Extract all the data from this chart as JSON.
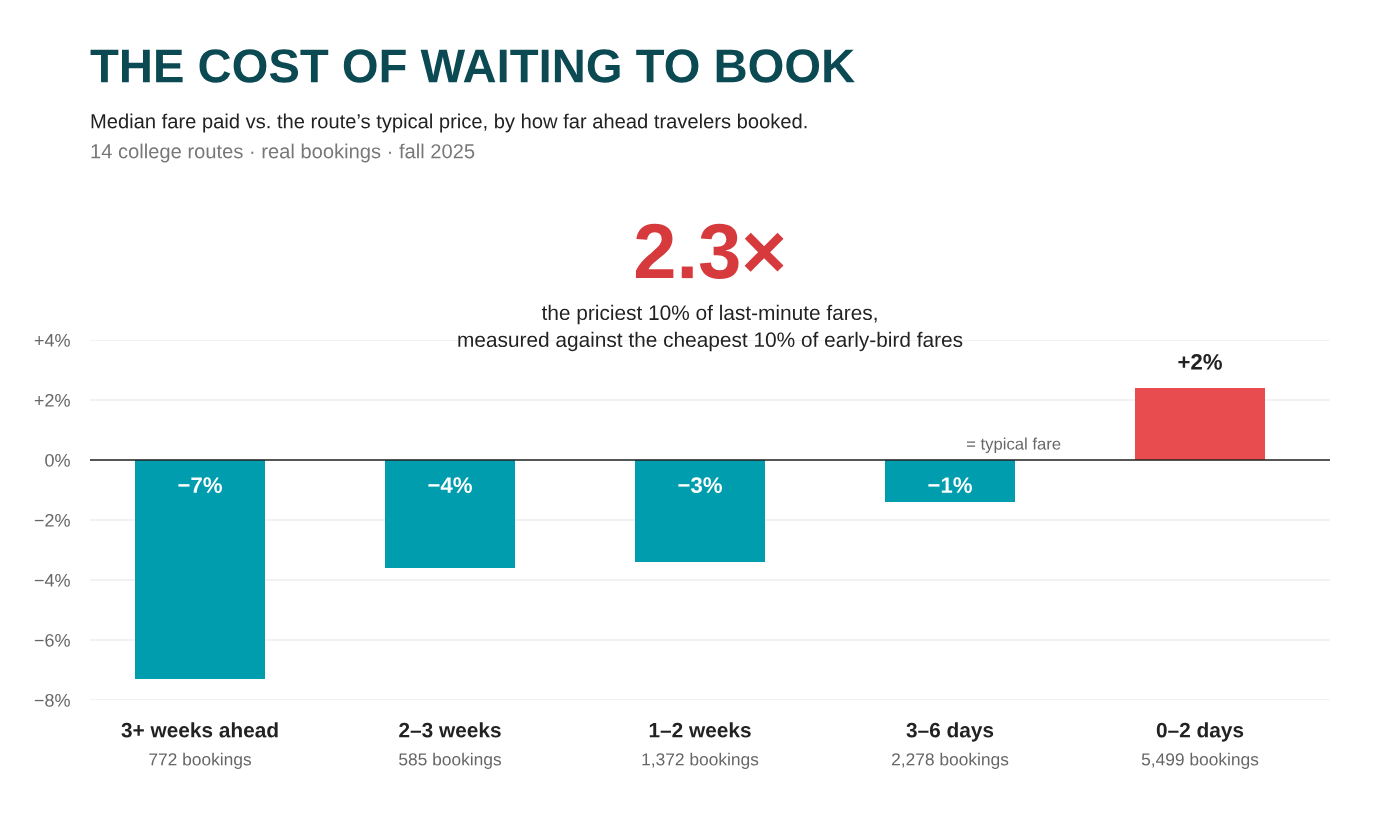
{
  "chart_data": {
    "type": "bar",
    "title": "THE COST OF WAITING TO BOOK",
    "subtitle": "Median fare paid vs. the route’s typical price, by how far ahead travelers booked.\n14 college routes · real bookings · fall 2025",
    "categories": [
      "3+ weeks ahead\n772 bookings",
      "2–3 weeks\n585 bookings",
      "1–2 weeks\n1,372 bookings",
      "3–6 days\n2,278 bookings",
      "0–2 days\n5,499 bookings"
    ],
    "values": [
      -7.3,
      -3.6,
      -3.4,
      -1.4,
      2.4
    ],
    "colors": [
      "#009dae",
      "#009dae",
      "#009dae",
      "#009dae",
      "#e84c4f"
    ],
    "value_labels": [
      "−7%",
      "−4%",
      "−3%",
      "−1%",
      "+2%"
    ],
    "ylim": [
      -8,
      4
    ],
    "yticks": [
      {
        "value": -8,
        "label": "−8%"
      },
      {
        "value": -6,
        "label": "−6%"
      },
      {
        "value": -4,
        "label": "−4%"
      },
      {
        "value": -2,
        "label": "−2%"
      },
      {
        "value": 0,
        "label": "0%"
      },
      {
        "value": 2,
        "label": "+2%"
      },
      {
        "value": 4,
        "label": "+4%"
      }
    ],
    "grid": "y",
    "ref_lines": [
      {
        "axis": "y",
        "value": 0,
        "label": "= typical fare",
        "color": "#222222"
      }
    ],
    "annotations": [
      "2.3×",
      "the priciest 10% of last-minute fares,\nmeasured against the cheapest 10% of early-bird fares"
    ]
  }
}
